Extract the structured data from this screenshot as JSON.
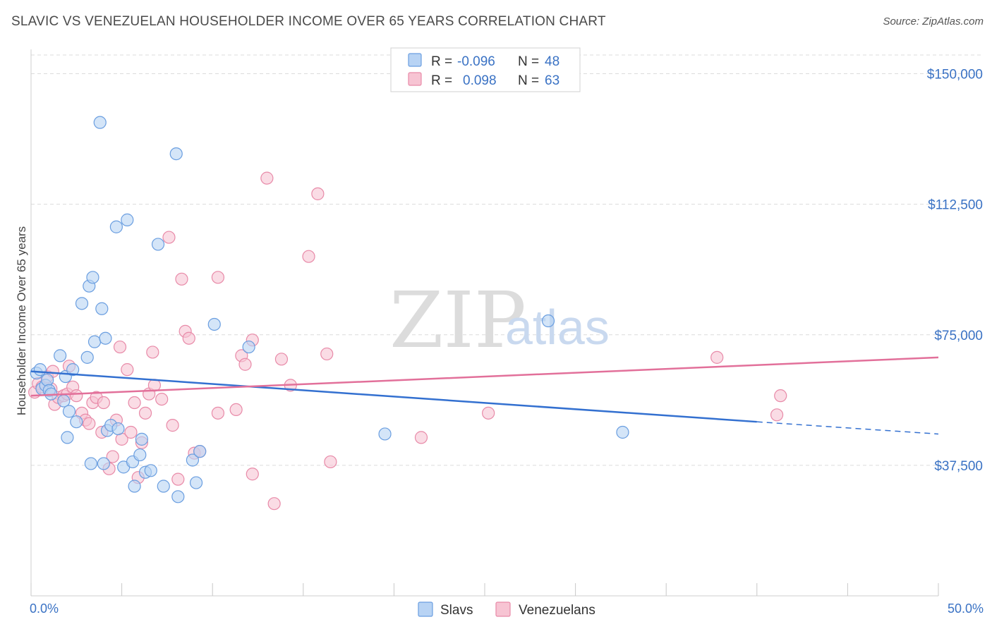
{
  "title": "SLAVIC VS VENEZUELAN HOUSEHOLDER INCOME OVER 65 YEARS CORRELATION CHART",
  "source": "Source: ZipAtlas.com",
  "watermark": {
    "zip": "ZIP",
    "atlas": "atlas"
  },
  "colors": {
    "slavs_fill": "#b8d3f4",
    "slavs_stroke": "#6a9ee0",
    "slavs_line": "#3370d0",
    "venezuelans_fill": "#f7c4d3",
    "venezuelans_stroke": "#e88aa8",
    "venezuelans_line": "#e2709a",
    "tick_text": "#3a72c4",
    "grid": "#dcdcdc"
  },
  "legend": {
    "rows": [
      {
        "r_label": "R =",
        "r_value": "-0.096",
        "n_label": "N =",
        "n_value": "48"
      },
      {
        "r_label": "R =",
        "r_value": "0.098",
        "n_label": "N =",
        "n_value": "63"
      }
    ]
  },
  "bottom_legend": {
    "slavs": "Slavs",
    "venezuelans": "Venezuelans"
  },
  "chart_data": {
    "type": "scatter",
    "title": "SLAVIC VS VENEZUELAN HOUSEHOLDER INCOME OVER 65 YEARS CORRELATION CHART",
    "xlabel": "",
    "ylabel": "Householder Income Over 65 years",
    "xlim": [
      0,
      50
    ],
    "ylim": [
      0,
      157000
    ],
    "x_tick_labels": [
      "0.0%",
      "50.0%"
    ],
    "y_ticks": [
      37500,
      75000,
      112500,
      150000
    ],
    "y_tick_labels": [
      "$37,500",
      "$75,000",
      "$112,500",
      "$150,000"
    ],
    "series": [
      {
        "name": "Slavs",
        "r": -0.096,
        "n": 48,
        "trend": {
          "x0": 0,
          "y0": 64500,
          "x1": 40,
          "y1": 50000,
          "dash_to_x": 50,
          "dash_to_y": 46500
        },
        "points": [
          [
            0.3,
            64000
          ],
          [
            0.5,
            65000
          ],
          [
            0.6,
            59500
          ],
          [
            0.8,
            60500
          ],
          [
            0.9,
            62000
          ],
          [
            1.0,
            59000
          ],
          [
            1.1,
            58000
          ],
          [
            1.6,
            69000
          ],
          [
            1.8,
            56000
          ],
          [
            1.9,
            63000
          ],
          [
            2.1,
            53000
          ],
          [
            2.3,
            65000
          ],
          [
            2.5,
            50000
          ],
          [
            2.8,
            84000
          ],
          [
            3.1,
            68500
          ],
          [
            3.2,
            89000
          ],
          [
            3.4,
            91500
          ],
          [
            3.5,
            73000
          ],
          [
            3.8,
            136000
          ],
          [
            3.9,
            82500
          ],
          [
            4.1,
            74000
          ],
          [
            4.2,
            47500
          ],
          [
            4.4,
            49000
          ],
          [
            4.8,
            48000
          ],
          [
            4.7,
            106000
          ],
          [
            5.1,
            37000
          ],
          [
            5.3,
            108000
          ],
          [
            5.6,
            38500
          ],
          [
            5.7,
            31500
          ],
          [
            6.0,
            40500
          ],
          [
            6.1,
            45000
          ],
          [
            6.3,
            35500
          ],
          [
            6.6,
            36000
          ],
          [
            7.0,
            101000
          ],
          [
            7.3,
            31500
          ],
          [
            8.1,
            28500
          ],
          [
            8.0,
            127000
          ],
          [
            8.9,
            39000
          ],
          [
            9.3,
            41500
          ],
          [
            9.1,
            32500
          ],
          [
            10.1,
            78000
          ],
          [
            12.0,
            71500
          ],
          [
            19.5,
            46500
          ],
          [
            28.5,
            79000
          ],
          [
            32.6,
            47000
          ],
          [
            3.3,
            38000
          ],
          [
            2.0,
            45500
          ],
          [
            4.0,
            38000
          ]
        ]
      },
      {
        "name": "Venezuelans",
        "r": 0.098,
        "n": 63,
        "trend": {
          "x0": 0,
          "y0": 57500,
          "x1": 50,
          "y1": 68500
        },
        "points": [
          [
            0.2,
            58500
          ],
          [
            0.4,
            61000
          ],
          [
            0.6,
            60000
          ],
          [
            0.9,
            63000
          ],
          [
            1.1,
            59500
          ],
          [
            1.2,
            64500
          ],
          [
            1.3,
            55000
          ],
          [
            1.5,
            57000
          ],
          [
            1.8,
            57500
          ],
          [
            2.0,
            58000
          ],
          [
            2.1,
            66000
          ],
          [
            2.3,
            60000
          ],
          [
            2.5,
            57500
          ],
          [
            2.8,
            52500
          ],
          [
            3.0,
            50500
          ],
          [
            3.2,
            49500
          ],
          [
            3.4,
            55500
          ],
          [
            3.6,
            57000
          ],
          [
            3.9,
            47000
          ],
          [
            4.0,
            55500
          ],
          [
            4.3,
            36500
          ],
          [
            4.5,
            40000
          ],
          [
            4.7,
            50500
          ],
          [
            4.9,
            71500
          ],
          [
            5.0,
            45000
          ],
          [
            5.3,
            65000
          ],
          [
            5.5,
            47000
          ],
          [
            5.7,
            55500
          ],
          [
            5.9,
            34000
          ],
          [
            6.1,
            44000
          ],
          [
            6.3,
            52500
          ],
          [
            6.5,
            58000
          ],
          [
            6.7,
            70000
          ],
          [
            6.8,
            60500
          ],
          [
            7.2,
            56500
          ],
          [
            7.6,
            103000
          ],
          [
            7.8,
            49000
          ],
          [
            8.1,
            33500
          ],
          [
            8.3,
            91000
          ],
          [
            8.5,
            76000
          ],
          [
            8.7,
            74000
          ],
          [
            9.0,
            41000
          ],
          [
            9.3,
            41500
          ],
          [
            10.3,
            91500
          ],
          [
            10.3,
            52500
          ],
          [
            11.3,
            53500
          ],
          [
            11.6,
            69000
          ],
          [
            11.8,
            66500
          ],
          [
            12.2,
            73500
          ],
          [
            12.2,
            35000
          ],
          [
            13.0,
            120000
          ],
          [
            13.4,
            26500
          ],
          [
            13.8,
            68000
          ],
          [
            14.3,
            60500
          ],
          [
            15.3,
            97500
          ],
          [
            15.8,
            115500
          ],
          [
            16.3,
            69500
          ],
          [
            16.5,
            38500
          ],
          [
            21.5,
            45500
          ],
          [
            25.2,
            52500
          ],
          [
            37.8,
            68500
          ],
          [
            41.1,
            52000
          ],
          [
            41.3,
            57500
          ]
        ]
      }
    ]
  }
}
